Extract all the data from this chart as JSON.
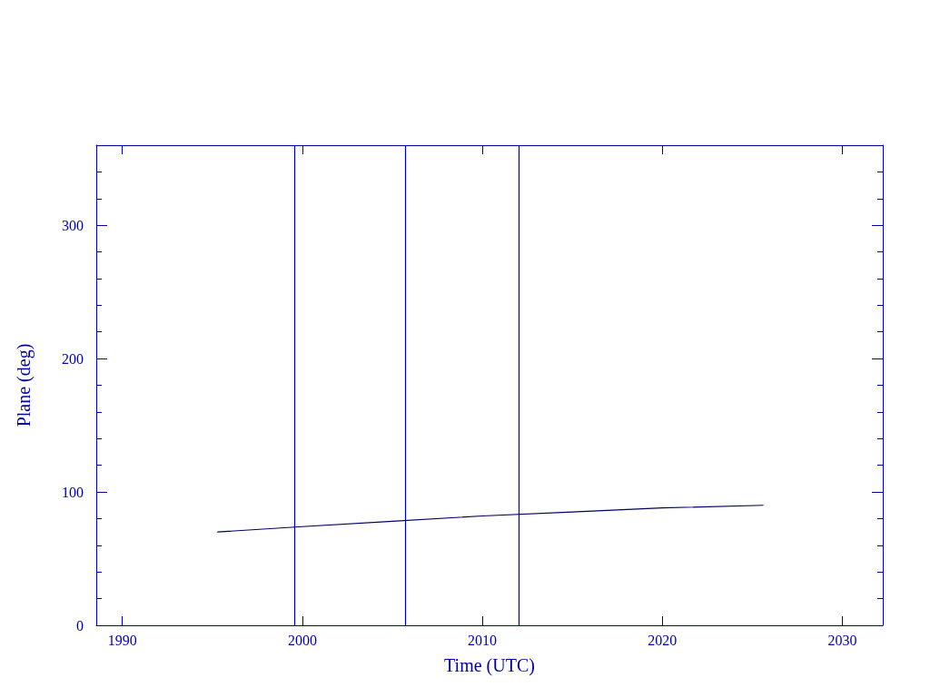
{
  "chart_data": {
    "type": "line",
    "xlabel": "Time (UTC)",
    "ylabel": "Plane (deg)",
    "x": [
      1995.3,
      2000,
      2005,
      2010,
      2015,
      2020,
      2025.6
    ],
    "series": [
      {
        "color": "#000060",
        "values": [
          70,
          74,
          78,
          82,
          85,
          88,
          90
        ]
      }
    ],
    "xlim": [
      1988.55,
      2032.25
    ],
    "xticks": [
      1990,
      2000,
      2010,
      2020,
      2030
    ],
    "ylim": [
      0,
      360
    ],
    "yticks": [
      0,
      100,
      200,
      300
    ],
    "ref_lines": [
      {
        "axis": "x",
        "value": 1999.55,
        "color": "#0000a0"
      },
      {
        "axis": "x",
        "value": 2005.7,
        "color": "#0000a0"
      },
      {
        "axis": "x",
        "value": 2012.05,
        "color": "#0000a0"
      }
    ],
    "grid": false,
    "marker": "none",
    "line_style": "solid"
  }
}
